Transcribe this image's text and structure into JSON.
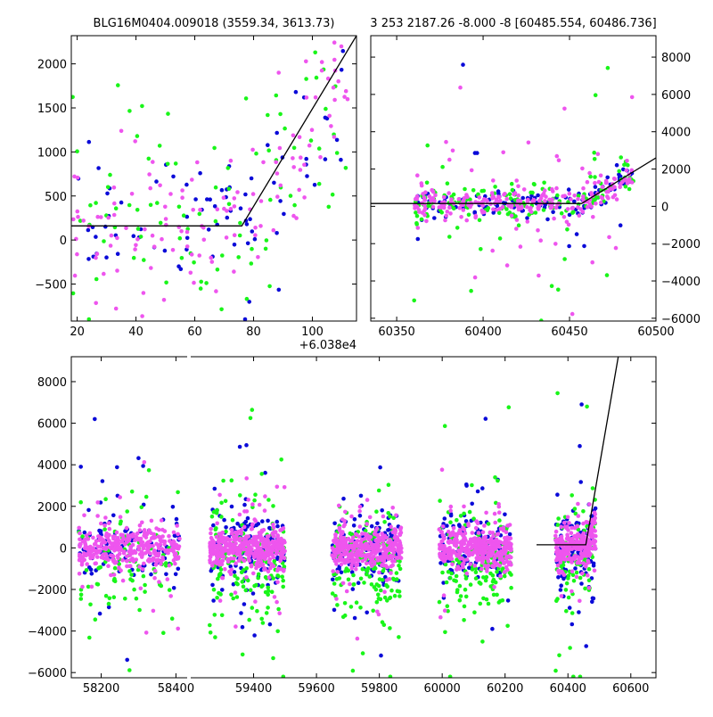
{
  "chart_data": [
    {
      "id": "top-left",
      "type": "scatter",
      "title": "BLG16M0404.009018 (3559.34, 3613.73)",
      "x_offset_label": "+6.038e4",
      "xlim": [
        18,
        115
      ],
      "ylim": [
        -920,
        2320
      ],
      "xticks": [
        {
          "v": 20,
          "label": "20"
        },
        {
          "v": 40,
          "label": "40"
        },
        {
          "v": 60,
          "label": "60"
        },
        {
          "v": 80,
          "label": "80"
        },
        {
          "v": 100,
          "label": "100"
        }
      ],
      "yticks": [
        {
          "v": -500,
          "label": "−500"
        },
        {
          "v": 0,
          "label": "0"
        },
        {
          "v": 500,
          "label": "500"
        },
        {
          "v": 1000,
          "label": "1000"
        },
        {
          "v": 1500,
          "label": "1500"
        },
        {
          "v": 2000,
          "label": "2000"
        }
      ],
      "model_line": [
        [
          18,
          160
        ],
        [
          76,
          160
        ],
        [
          115,
          2320
        ]
      ],
      "scatter": {
        "seed": 11,
        "count": [
          80,
          90,
          130
        ],
        "x_range": [
          18,
          112
        ],
        "base_start": 180,
        "break_x": 76,
        "slope": 40,
        "sigma": 420
      }
    },
    {
      "id": "top-right",
      "type": "scatter",
      "title": "3 253 2187.26 -8.000 -8 [60485.554, 60486.736]",
      "xlim": [
        60335,
        60500
      ],
      "ylim": [
        -6150,
        9150
      ],
      "xticks": [
        {
          "v": 60350,
          "label": "60350"
        },
        {
          "v": 60400,
          "label": "60400"
        },
        {
          "v": 60450,
          "label": "60450"
        },
        {
          "v": 60500,
          "label": "60500"
        }
      ],
      "yticks": [
        {
          "v": -6000,
          "label": "−6000"
        },
        {
          "v": -4000,
          "label": "−4000"
        },
        {
          "v": -2000,
          "label": "−2000"
        },
        {
          "v": 0,
          "label": "0"
        },
        {
          "v": 2000,
          "label": "2000"
        },
        {
          "v": 4000,
          "label": "4000"
        },
        {
          "v": 6000,
          "label": "6000"
        },
        {
          "v": 8000,
          "label": "8000"
        }
      ],
      "model_line": [
        [
          60335,
          150
        ],
        [
          60457,
          150
        ],
        [
          60500,
          2600
        ]
      ],
      "scatter": {
        "seed": 23,
        "count": [
          120,
          160,
          260
        ],
        "x_range": [
          60360,
          60487
        ],
        "base_start": 120,
        "break_x": 60457,
        "slope": 55,
        "sigma": 380
      }
    },
    {
      "id": "bottom",
      "type": "scatter",
      "xlim": [
        58120,
        60680
      ],
      "break_gap": [
        58430,
        59200
      ],
      "ylim": [
        -6250,
        9200
      ],
      "xticks": [
        {
          "v": 58200,
          "label": "58200"
        },
        {
          "v": 58400,
          "label": "58400"
        },
        {
          "v": 59400,
          "label": "59400"
        },
        {
          "v": 59600,
          "label": "59600"
        },
        {
          "v": 59800,
          "label": "59800"
        },
        {
          "v": 60000,
          "label": "60000"
        },
        {
          "v": 60200,
          "label": "60200"
        },
        {
          "v": 60400,
          "label": "60400"
        },
        {
          "v": 60600,
          "label": "60600"
        }
      ],
      "yticks": [
        {
          "v": -6000,
          "label": "−6000"
        },
        {
          "v": -4000,
          "label": "−4000"
        },
        {
          "v": -2000,
          "label": "−2000"
        },
        {
          "v": 0,
          "label": "0"
        },
        {
          "v": 2000,
          "label": "2000"
        },
        {
          "v": 4000,
          "label": "4000"
        },
        {
          "v": 6000,
          "label": "6000"
        },
        {
          "v": 8000,
          "label": "8000"
        }
      ],
      "model_line": [
        [
          60300,
          150
        ],
        [
          60457,
          150
        ],
        [
          60560,
          9200
        ]
      ],
      "seasons": [
        {
          "x": [
            58140,
            58410
          ],
          "n": [
            110,
            90,
            330
          ]
        },
        {
          "x": [
            59260,
            59500
          ],
          "n": [
            150,
            170,
            430
          ]
        },
        {
          "x": [
            59650,
            59870
          ],
          "n": [
            130,
            160,
            360
          ]
        },
        {
          "x": [
            59990,
            60220
          ],
          "n": [
            140,
            150,
            360
          ]
        },
        {
          "x": [
            60360,
            60488
          ],
          "n": [
            110,
            90,
            270
          ]
        }
      ],
      "scatter": {
        "seed": 37,
        "sigma": 650
      }
    }
  ],
  "colors": {
    "series_blue": "#0a0ad8",
    "series_green": "#19f519",
    "series_magenta": "#ee55ee",
    "model_line": "#000000",
    "axes": "#000000"
  }
}
